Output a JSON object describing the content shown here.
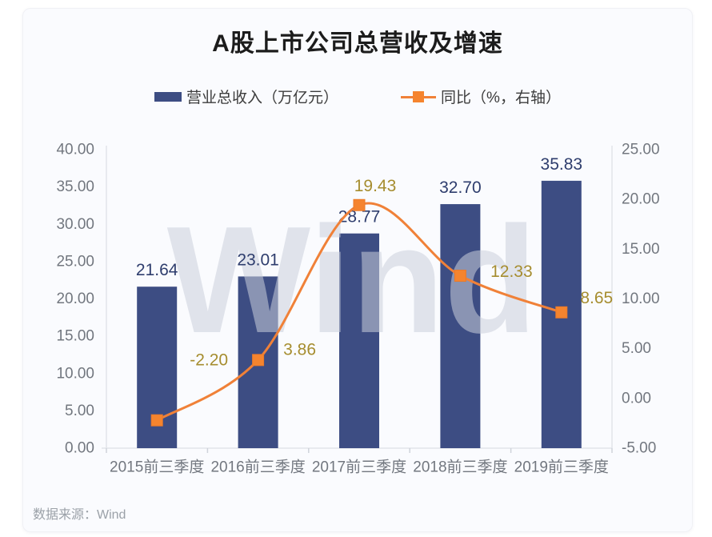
{
  "source_note": "数据来源：Wind",
  "colors": {
    "bar": "#3d4d83",
    "line": "#f08138",
    "marker_fill": "#f5842e",
    "marker_stroke": "#ec7a28",
    "bar_label": "#2e3d6d",
    "line_label": "#a68d2f",
    "axis_text": "#72777f",
    "axis_line": "#e2e5ea",
    "tick": "#cfd3da",
    "title": "#1c1c1c",
    "legend_text": "#3c3c3c",
    "source_text": "#9ba1a8",
    "watermark": "rgba(203,207,218,0.55)",
    "card_bg": "#fafbfe"
  },
  "chart_data": {
    "type": "combo",
    "title": "A股上市公司总营收及增速",
    "watermark": "Wind",
    "grid": false,
    "legend_position": "top",
    "categories": [
      "2015前三季度",
      "2016前三季度",
      "2017前三季度",
      "2018前三季度",
      "2019前三季度"
    ],
    "series": [
      {
        "name": "营业总收入（万亿元）",
        "type": "bar",
        "axis": "left",
        "values": [
          21.64,
          23.01,
          28.77,
          32.7,
          35.83
        ]
      },
      {
        "name": "同比（%，右轴）",
        "type": "line",
        "axis": "right",
        "values": [
          -2.2,
          3.86,
          19.43,
          12.33,
          8.65
        ]
      }
    ],
    "left_axis": {
      "min": 0,
      "max": 40,
      "step": 5,
      "decimals": 2
    },
    "right_axis": {
      "min": -5,
      "max": 25,
      "step": 5,
      "decimals": 2
    }
  }
}
